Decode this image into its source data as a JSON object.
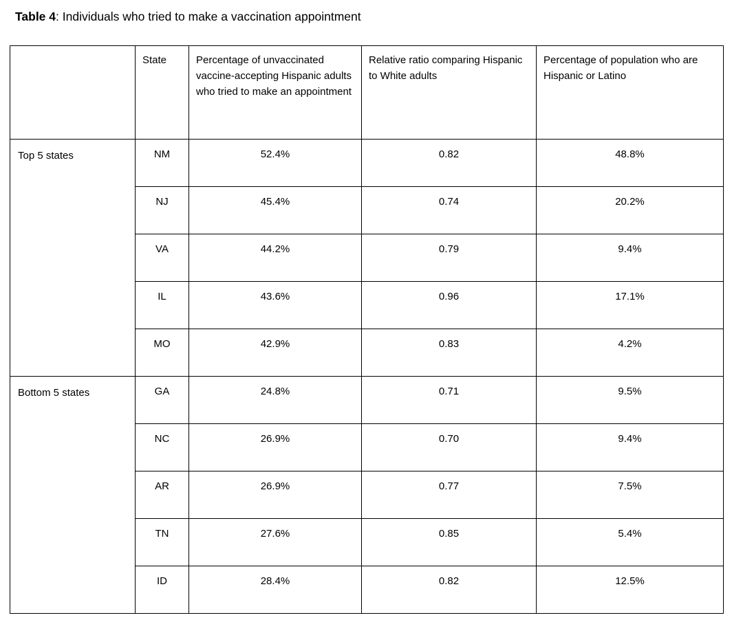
{
  "title": {
    "label": "Table 4",
    "rest": ": Individuals who tried to make a vaccination appointment"
  },
  "table": {
    "headers": {
      "group": "",
      "state": "State",
      "pct_tried": "Percentage of unvaccinated vaccine-accepting Hispanic adults who tried to make an appointment",
      "ratio": "Relative ratio comparing Hispanic to White adults",
      "pct_pop": "Percentage of population who are Hispanic or Latino"
    },
    "groups": [
      {
        "label": "Top 5 states",
        "rows": [
          {
            "state": "NM",
            "pct_tried": "52.4%",
            "ratio": "0.82",
            "pct_pop": "48.8%"
          },
          {
            "state": "NJ",
            "pct_tried": "45.4%",
            "ratio": "0.74",
            "pct_pop": "20.2%"
          },
          {
            "state": "VA",
            "pct_tried": "44.2%",
            "ratio": "0.79",
            "pct_pop": "9.4%"
          },
          {
            "state": "IL",
            "pct_tried": "43.6%",
            "ratio": "0.96",
            "pct_pop": "17.1%"
          },
          {
            "state": "MO",
            "pct_tried": "42.9%",
            "ratio": "0.83",
            "pct_pop": "4.2%"
          }
        ]
      },
      {
        "label": "Bottom 5 states",
        "rows": [
          {
            "state": "GA",
            "pct_tried": "24.8%",
            "ratio": "0.71",
            "pct_pop": "9.5%"
          },
          {
            "state": "NC",
            "pct_tried": "26.9%",
            "ratio": "0.70",
            "pct_pop": "9.4%"
          },
          {
            "state": "AR",
            "pct_tried": "26.9%",
            "ratio": "0.77",
            "pct_pop": "7.5%"
          },
          {
            "state": "TN",
            "pct_tried": "27.6%",
            "ratio": "0.85",
            "pct_pop": "5.4%"
          },
          {
            "state": "ID",
            "pct_tried": "28.4%",
            "ratio": "0.82",
            "pct_pop": "12.5%"
          }
        ]
      }
    ]
  }
}
